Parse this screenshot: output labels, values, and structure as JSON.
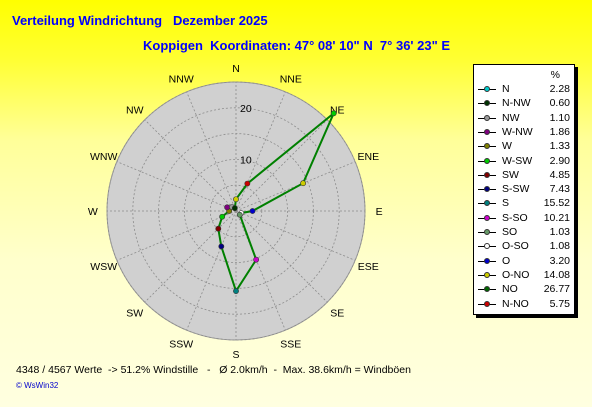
{
  "header": {
    "title": "Verteilung Windrichtung   Dezember 2025",
    "subtitle": "Koppigen  Koordinaten: 47° 08' 10\" N  7° 36' 23\" E"
  },
  "chart_data": {
    "type": "radar",
    "radial_ticks": [
      "10",
      "20"
    ],
    "rmax": 25,
    "grid": true,
    "directions": [
      "N",
      "NNE",
      "NE",
      "ENE",
      "E",
      "ESE",
      "SE",
      "SSE",
      "S",
      "SSW",
      "SW",
      "WSW",
      "W",
      "WNW",
      "NW",
      "NNW"
    ],
    "series_unit": "%",
    "series": [
      {
        "name": "N",
        "value": "2.28",
        "color": "#00cccc"
      },
      {
        "name": "N-NW",
        "value": "0.60",
        "color": "#003300"
      },
      {
        "name": "NW",
        "value": "1.10",
        "color": "#999999"
      },
      {
        "name": "W-NW",
        "value": "1.86",
        "color": "#800080"
      },
      {
        "name": "W",
        "value": "1.33",
        "color": "#808000"
      },
      {
        "name": "W-SW",
        "value": "2.90",
        "color": "#00cc00"
      },
      {
        "name": "SW",
        "value": "4.85",
        "color": "#800000"
      },
      {
        "name": "S-SW",
        "value": "7.43",
        "color": "#000080"
      },
      {
        "name": "S",
        "value": "15.52",
        "color": "#008080"
      },
      {
        "name": "S-SO",
        "value": "10.21",
        "color": "#cc00cc"
      },
      {
        "name": "SO",
        "value": "1.03",
        "color": "#669966"
      },
      {
        "name": "O-SO",
        "value": "1.08",
        "color": "#ffffff"
      },
      {
        "name": "O",
        "value": "3.20",
        "color": "#0000cc"
      },
      {
        "name": "O-NO",
        "value": "14.08",
        "color": "#cccc00"
      },
      {
        "name": "NO",
        "value": "26.77",
        "color": "#006600"
      },
      {
        "name": "N-NO",
        "value": "5.75",
        "color": "#cc0000"
      }
    ],
    "polygon_values": [
      2.28,
      5.75,
      26.77,
      14.08,
      3.2,
      1.08,
      1.03,
      10.21,
      15.52,
      7.43,
      4.85,
      2.9,
      1.33,
      1.86,
      1.1,
      0.6
    ],
    "marker_colors": [
      "#cccc00",
      "#cc0000",
      "#00cc00",
      "#cccc00",
      "#0000cc",
      "#ffffff",
      "#669966",
      "#cc00cc",
      "#008080",
      "#000080",
      "#800000",
      "#00cc00",
      "#808000",
      "#800080",
      "#999999",
      "#003300"
    ],
    "line_color": "#008000"
  },
  "footer": {
    "text": "4348 / 4567 Werte  -> 51.2% Windstille   -   Ø 2.0km/h  -  Max. 38.6km/h = Windböen",
    "brand": "© WsWin32"
  }
}
